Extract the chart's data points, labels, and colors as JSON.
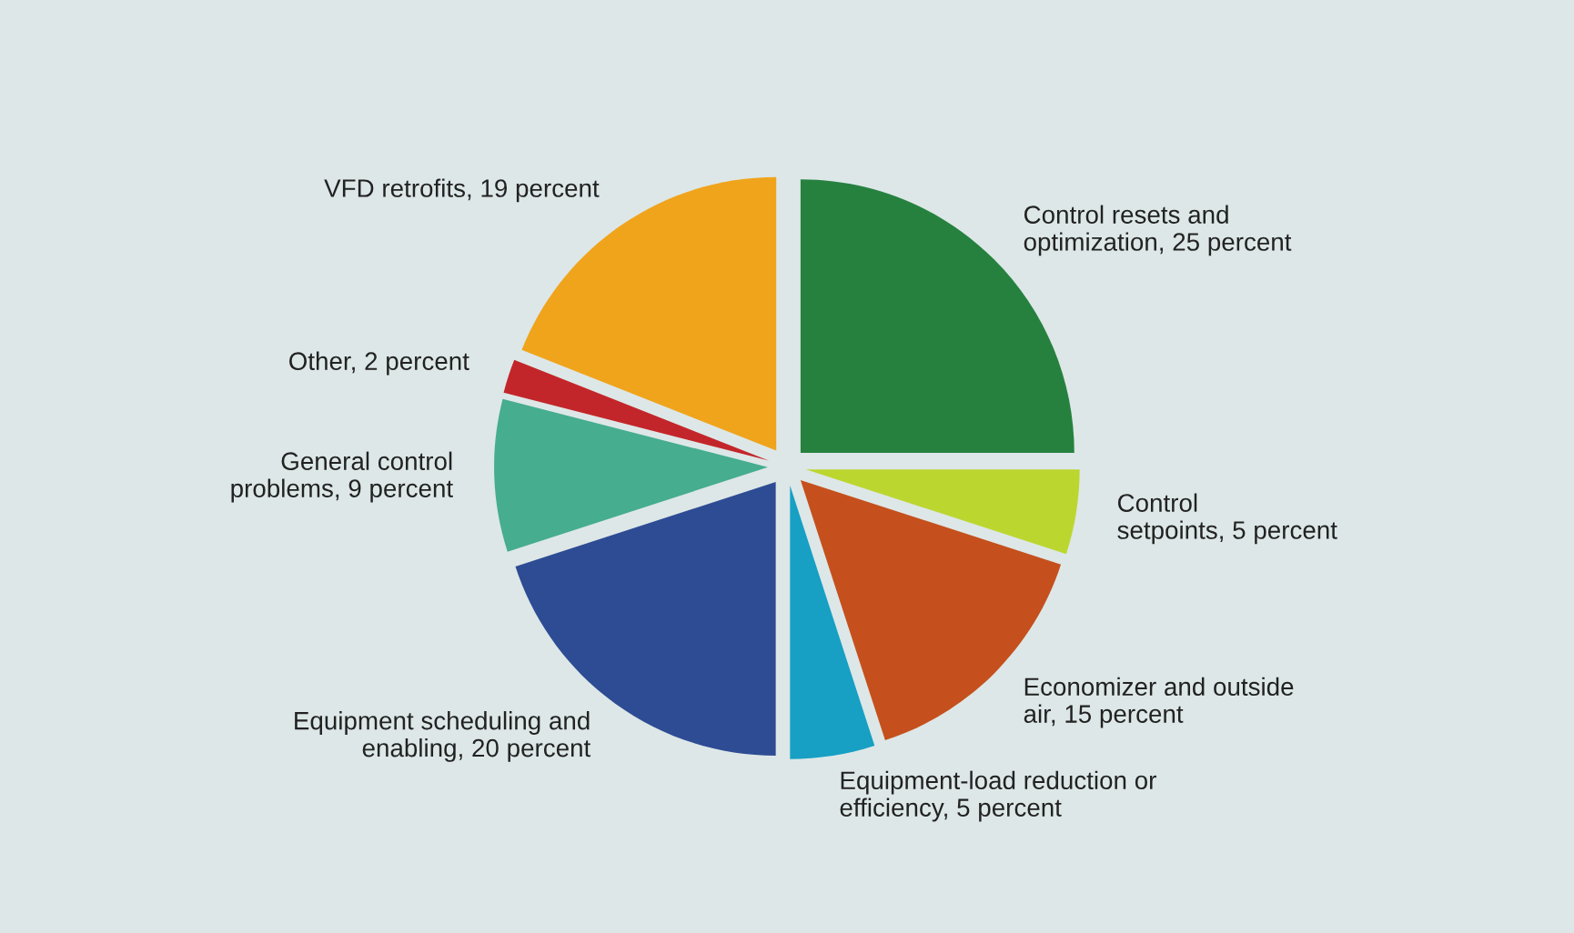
{
  "chart_data": {
    "type": "pie",
    "categories": [
      "Control resets and optimization",
      "Control setpoints",
      "Economizer and outside air",
      "Equipment-load reduction or efficiency",
      "Equipment scheduling and enabling",
      "General control problems",
      "Other",
      "VFD retrofits"
    ],
    "values": [
      25,
      5,
      15,
      5,
      20,
      9,
      2,
      19
    ],
    "value_labels": [
      "25 percent",
      "5 percent",
      "15 percent",
      "5 percent",
      "20 percent",
      "9 percent",
      "2 percent",
      "19 percent"
    ],
    "colors": [
      "#26813f",
      "#bcd630",
      "#c5501d",
      "#179fc4",
      "#2e4c94",
      "#46ad8f",
      "#c3262a",
      "#f0a41c"
    ]
  }
}
